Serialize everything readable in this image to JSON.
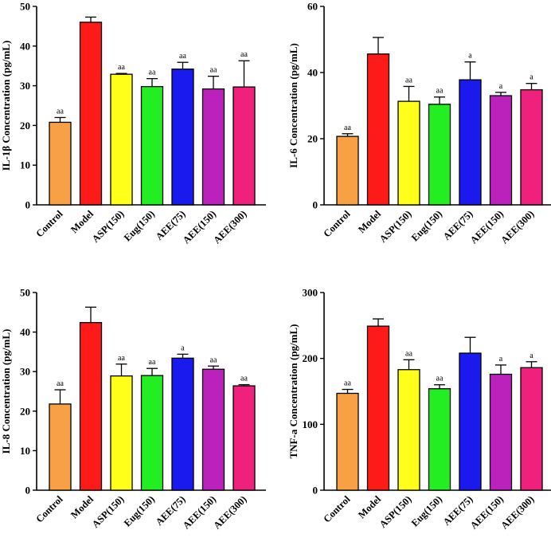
{
  "chart_data": [
    {
      "type": "bar",
      "ylabel": "IL-1β Concentration (pg/mL)",
      "ylim": [
        0,
        50
      ],
      "yticks": [
        0,
        10,
        20,
        30,
        40,
        50
      ],
      "categories": [
        "Control",
        "Model",
        "ASP(150)",
        "Eug(150)",
        "AEE(75)",
        "AEE(150)",
        "AEE(300)"
      ],
      "values": [
        20.8,
        46.0,
        32.9,
        29.8,
        34.2,
        29.2,
        29.7
      ],
      "errors": [
        1.2,
        1.3,
        0.2,
        2.0,
        1.7,
        3.2,
        6.6
      ],
      "significance": [
        "aa",
        "",
        "aa",
        "aa",
        "aa",
        "aa",
        "aa"
      ],
      "colors": [
        "#f8a144",
        "#ff1a1a",
        "#ffff1a",
        "#22ee22",
        "#1a1aee",
        "#bb22bb",
        "#f0207d"
      ]
    },
    {
      "type": "bar",
      "ylabel": "IL-6 Concentration (pg/mL)",
      "ylim": [
        0,
        60
      ],
      "yticks": [
        0,
        20,
        40,
        60
      ],
      "categories": [
        "Control",
        "Model",
        "ASP(150)",
        "Eug(150)",
        "AEE(75)",
        "AEE(150)",
        "AEE(300)"
      ],
      "values": [
        20.7,
        45.6,
        31.3,
        30.4,
        37.8,
        33.0,
        34.8
      ],
      "errors": [
        0.8,
        5.0,
        4.5,
        2.2,
        5.4,
        1.0,
        1.9
      ],
      "significance": [
        "aa",
        "",
        "aa",
        "aa",
        "a",
        "a",
        "a"
      ],
      "colors": [
        "#f8a144",
        "#ff1a1a",
        "#ffff1a",
        "#22ee22",
        "#1a1aee",
        "#bb22bb",
        "#f0207d"
      ]
    },
    {
      "type": "bar",
      "ylabel": "IL-8 Concentration (pg/mL)",
      "ylim": [
        0,
        50
      ],
      "yticks": [
        0,
        10,
        20,
        30,
        40,
        50
      ],
      "categories": [
        "Control",
        "Model",
        "ASP(150)",
        "Eug(150)",
        "AEE(75)",
        "AEE(150)",
        "AEE(300)"
      ],
      "values": [
        21.8,
        42.4,
        28.9,
        29.0,
        33.4,
        30.6,
        26.4
      ],
      "errors": [
        3.6,
        3.9,
        3.0,
        1.8,
        1.0,
        0.8,
        0.3
      ],
      "significance": [
        "aa",
        "",
        "aa",
        "aa",
        "a",
        "aa",
        "aa"
      ],
      "colors": [
        "#f8a144",
        "#ff1a1a",
        "#ffff1a",
        "#22ee22",
        "#1a1aee",
        "#bb22bb",
        "#f0207d"
      ]
    },
    {
      "type": "bar",
      "ylabel": "TNF-a Concentration (pg/mL)",
      "ylim": [
        0,
        300
      ],
      "yticks": [
        0,
        100,
        200,
        300
      ],
      "categories": [
        "Control",
        "Model",
        "ASP(150)",
        "Eug(150)",
        "AEE(75)",
        "AEE(150)",
        "AEE(300)"
      ],
      "values": [
        147,
        249,
        183,
        154,
        208,
        176,
        186
      ],
      "errors": [
        6,
        11,
        15,
        6,
        24,
        14,
        9
      ],
      "significance": [
        "aa",
        "",
        "aa",
        "aa",
        "",
        "a",
        "a"
      ],
      "colors": [
        "#f8a144",
        "#ff1a1a",
        "#ffff1a",
        "#22ee22",
        "#1a1aee",
        "#bb22bb",
        "#f0207d"
      ]
    }
  ]
}
